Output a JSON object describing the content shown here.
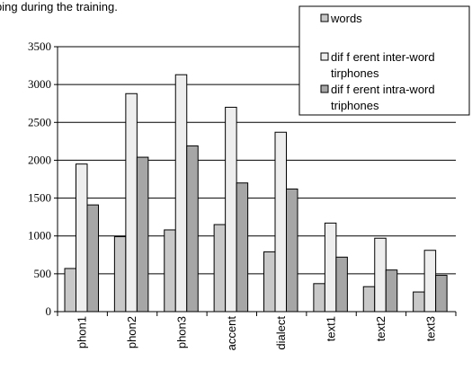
{
  "clipped_caption": "ping during the training.",
  "chart_data": {
    "type": "bar",
    "categories": [
      "phon1",
      "phon2",
      "phon3",
      "accent",
      "dialect",
      "text1",
      "text2",
      "text3"
    ],
    "series": [
      {
        "name": "words",
        "values": [
          570,
          990,
          1080,
          1150,
          790,
          370,
          330,
          260
        ]
      },
      {
        "name": "dif f erent inter-word tirphones",
        "values": [
          1950,
          2880,
          3130,
          2700,
          2370,
          1170,
          970,
          810
        ]
      },
      {
        "name": "dif f erent intra-word triphones",
        "values": [
          1410,
          2040,
          2190,
          1700,
          1620,
          720,
          550,
          480
        ]
      }
    ],
    "ylim": [
      0,
      3500
    ],
    "yticks": [
      "0",
      "500",
      "1000",
      "1500",
      "2000",
      "2500",
      "3000",
      "3500"
    ],
    "grid": true,
    "legend_position": "top-right",
    "legend_entries": [
      [
        "words"
      ],
      [
        "dif f erent inter-word",
        "tirphones"
      ],
      [
        "dif f erent intra-word",
        "triphones"
      ]
    ],
    "colors": [
      "#c8c8c8",
      "#eeeeee",
      "#a6a6a6"
    ],
    "xlabel": "",
    "ylabel": "",
    "title": ""
  }
}
